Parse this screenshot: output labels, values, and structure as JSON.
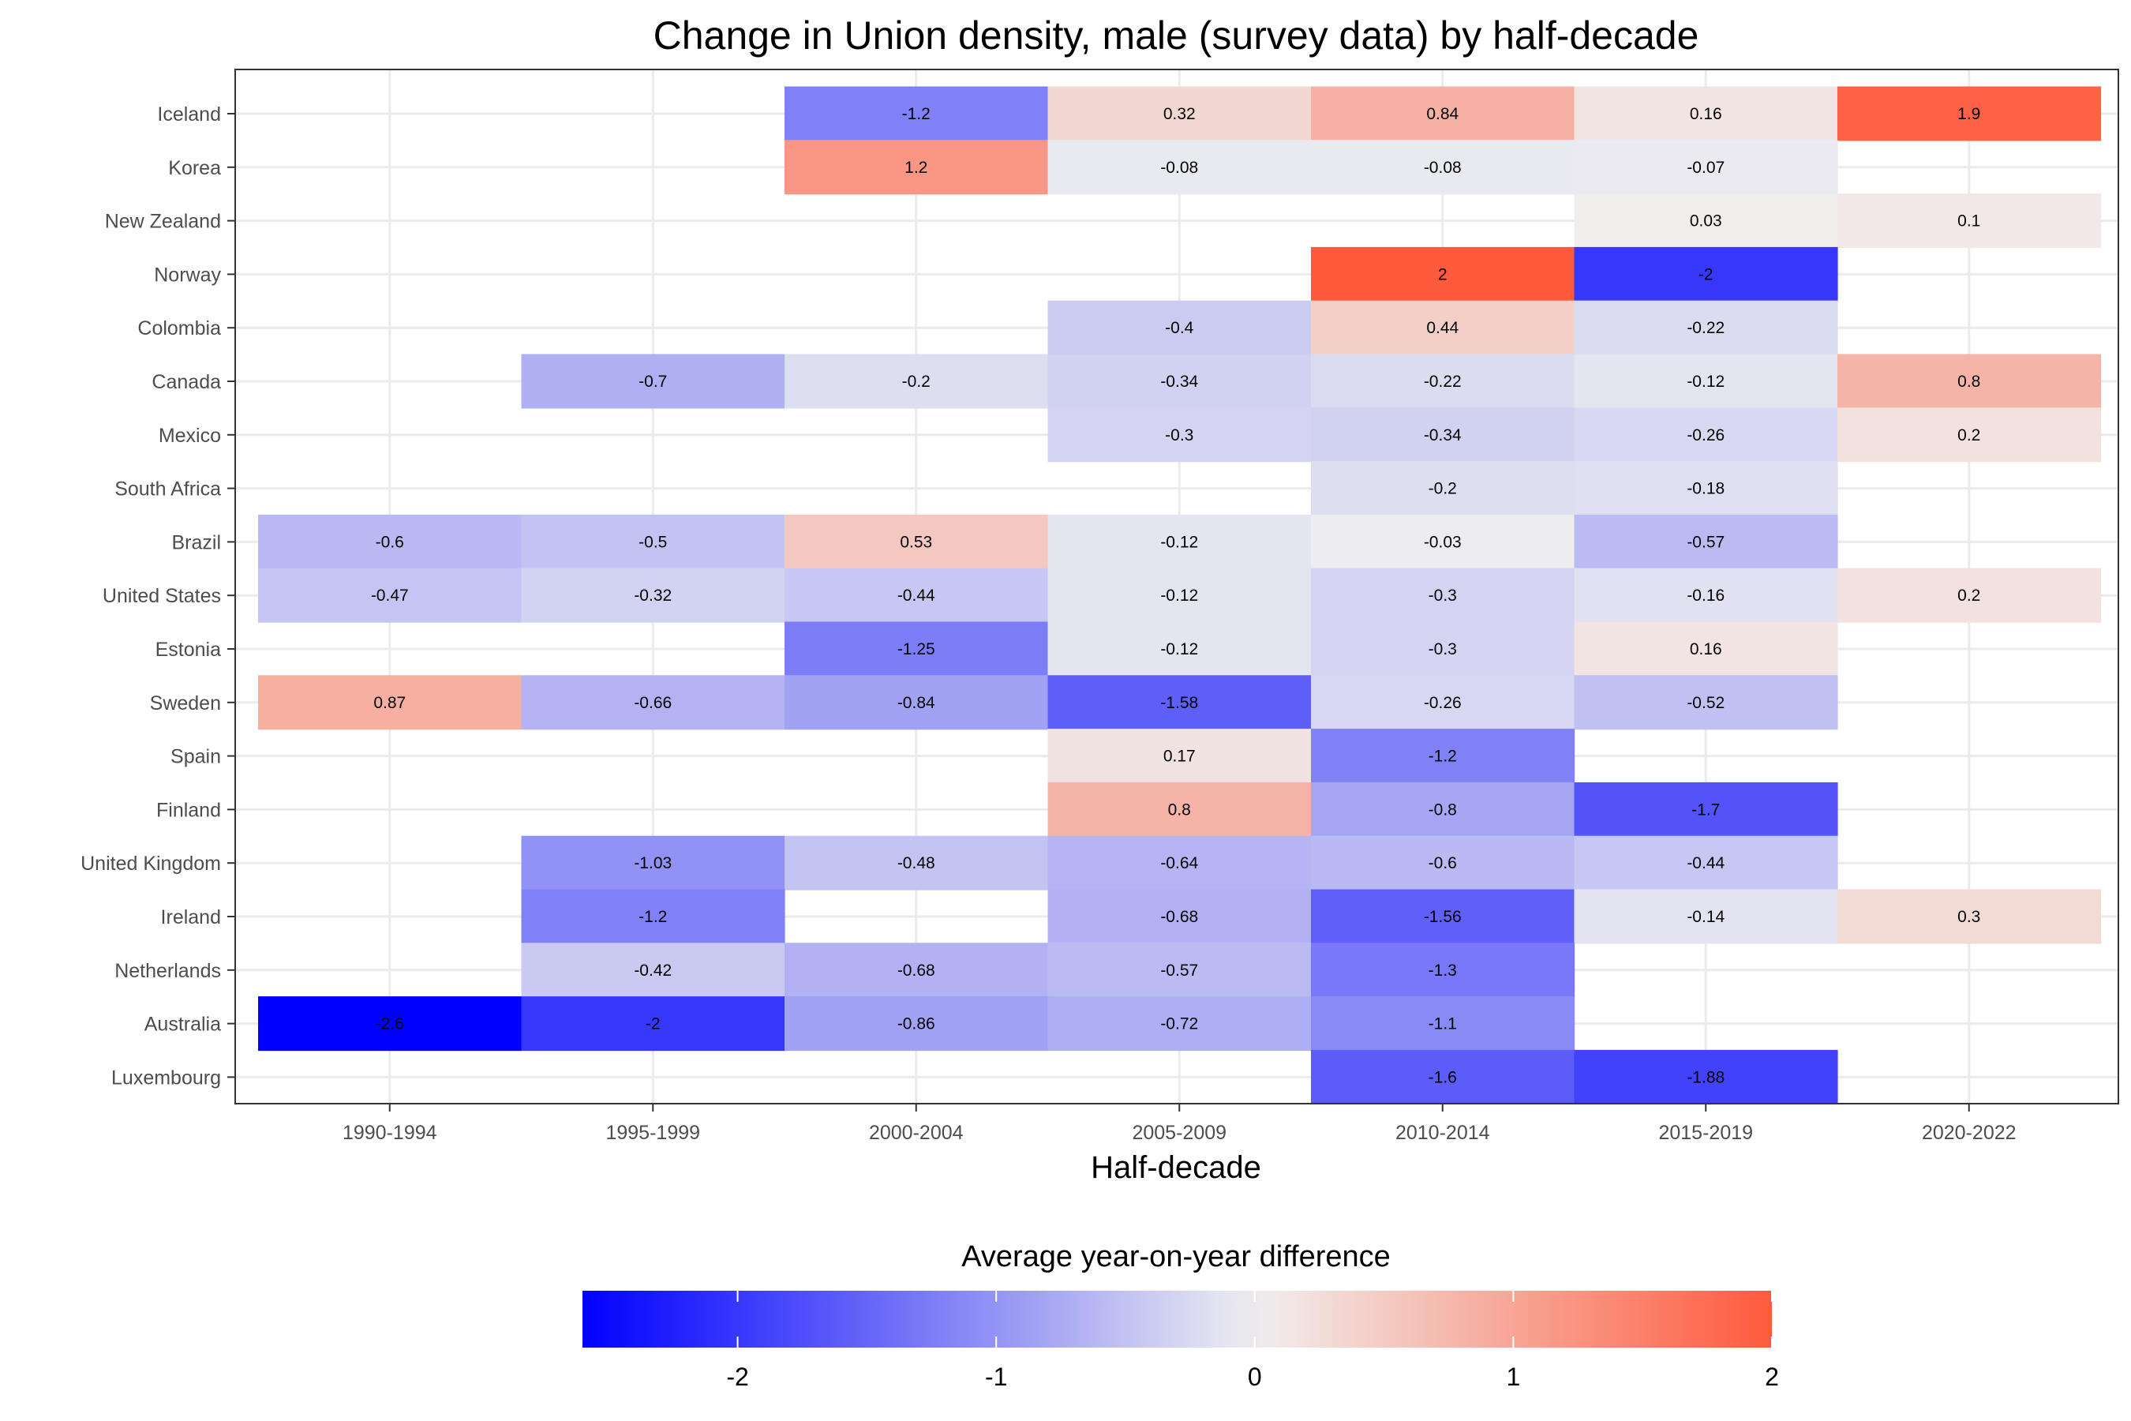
{
  "chart_data": {
    "type": "heatmap",
    "title": "Change in Union density, male (survey data) by half-decade",
    "xlabel": "Half-decade",
    "ylabel": "",
    "x": [
      "1990-1994",
      "1995-1999",
      "2000-2004",
      "2005-2009",
      "2010-2014",
      "2015-2019",
      "2020-2022"
    ],
    "y": [
      "Iceland",
      "Korea",
      "New Zealand",
      "Norway",
      "Colombia",
      "Canada",
      "Mexico",
      "South Africa",
      "Brazil",
      "United States",
      "Estonia",
      "Sweden",
      "Spain",
      "Finland",
      "United Kingdom",
      "Ireland",
      "Netherlands",
      "Australia",
      "Luxembourg"
    ],
    "values": [
      [
        null,
        null,
        -1.2,
        0.32,
        0.84,
        0.16,
        1.9
      ],
      [
        null,
        null,
        1.2,
        -0.08,
        -0.08,
        -0.07,
        null
      ],
      [
        null,
        null,
        null,
        null,
        null,
        0.03,
        0.1
      ],
      [
        null,
        null,
        null,
        null,
        2,
        -2,
        null
      ],
      [
        null,
        null,
        null,
        -0.4,
        0.44,
        -0.22,
        null
      ],
      [
        null,
        -0.7,
        -0.2,
        -0.34,
        -0.22,
        -0.12,
        0.8
      ],
      [
        null,
        null,
        null,
        -0.3,
        -0.34,
        -0.26,
        0.2
      ],
      [
        null,
        null,
        null,
        null,
        -0.2,
        -0.18,
        null
      ],
      [
        -0.6,
        -0.5,
        0.53,
        -0.12,
        -0.03,
        -0.57,
        null
      ],
      [
        -0.47,
        -0.32,
        -0.44,
        -0.12,
        -0.3,
        -0.16,
        0.2
      ],
      [
        null,
        null,
        -1.25,
        -0.12,
        -0.3,
        0.16,
        null
      ],
      [
        0.87,
        -0.66,
        -0.84,
        -1.58,
        -0.26,
        -0.52,
        null
      ],
      [
        null,
        null,
        null,
        0.17,
        -1.2,
        null,
        null
      ],
      [
        null,
        null,
        null,
        0.8,
        -0.8,
        -1.7,
        null
      ],
      [
        null,
        -1.03,
        -0.48,
        -0.64,
        -0.6,
        -0.44,
        null
      ],
      [
        null,
        -1.2,
        null,
        -0.68,
        -1.56,
        -0.14,
        0.3
      ],
      [
        null,
        -0.42,
        -0.68,
        -0.57,
        -1.3,
        null,
        null
      ],
      [
        -2.6,
        -2,
        -0.86,
        -0.72,
        -1.1,
        null,
        null
      ],
      [
        null,
        null,
        null,
        null,
        -1.6,
        -1.88,
        null
      ]
    ],
    "legend": {
      "title": "Average year-on-year difference",
      "position": "bottom",
      "ticks": [
        -2,
        -1,
        0,
        1,
        2
      ],
      "range": [
        -2.6,
        2
      ],
      "low_color": "#0000ff",
      "mid_color": "#f0f0f0",
      "high_color": "#ff5a3c"
    },
    "grid": true
  }
}
